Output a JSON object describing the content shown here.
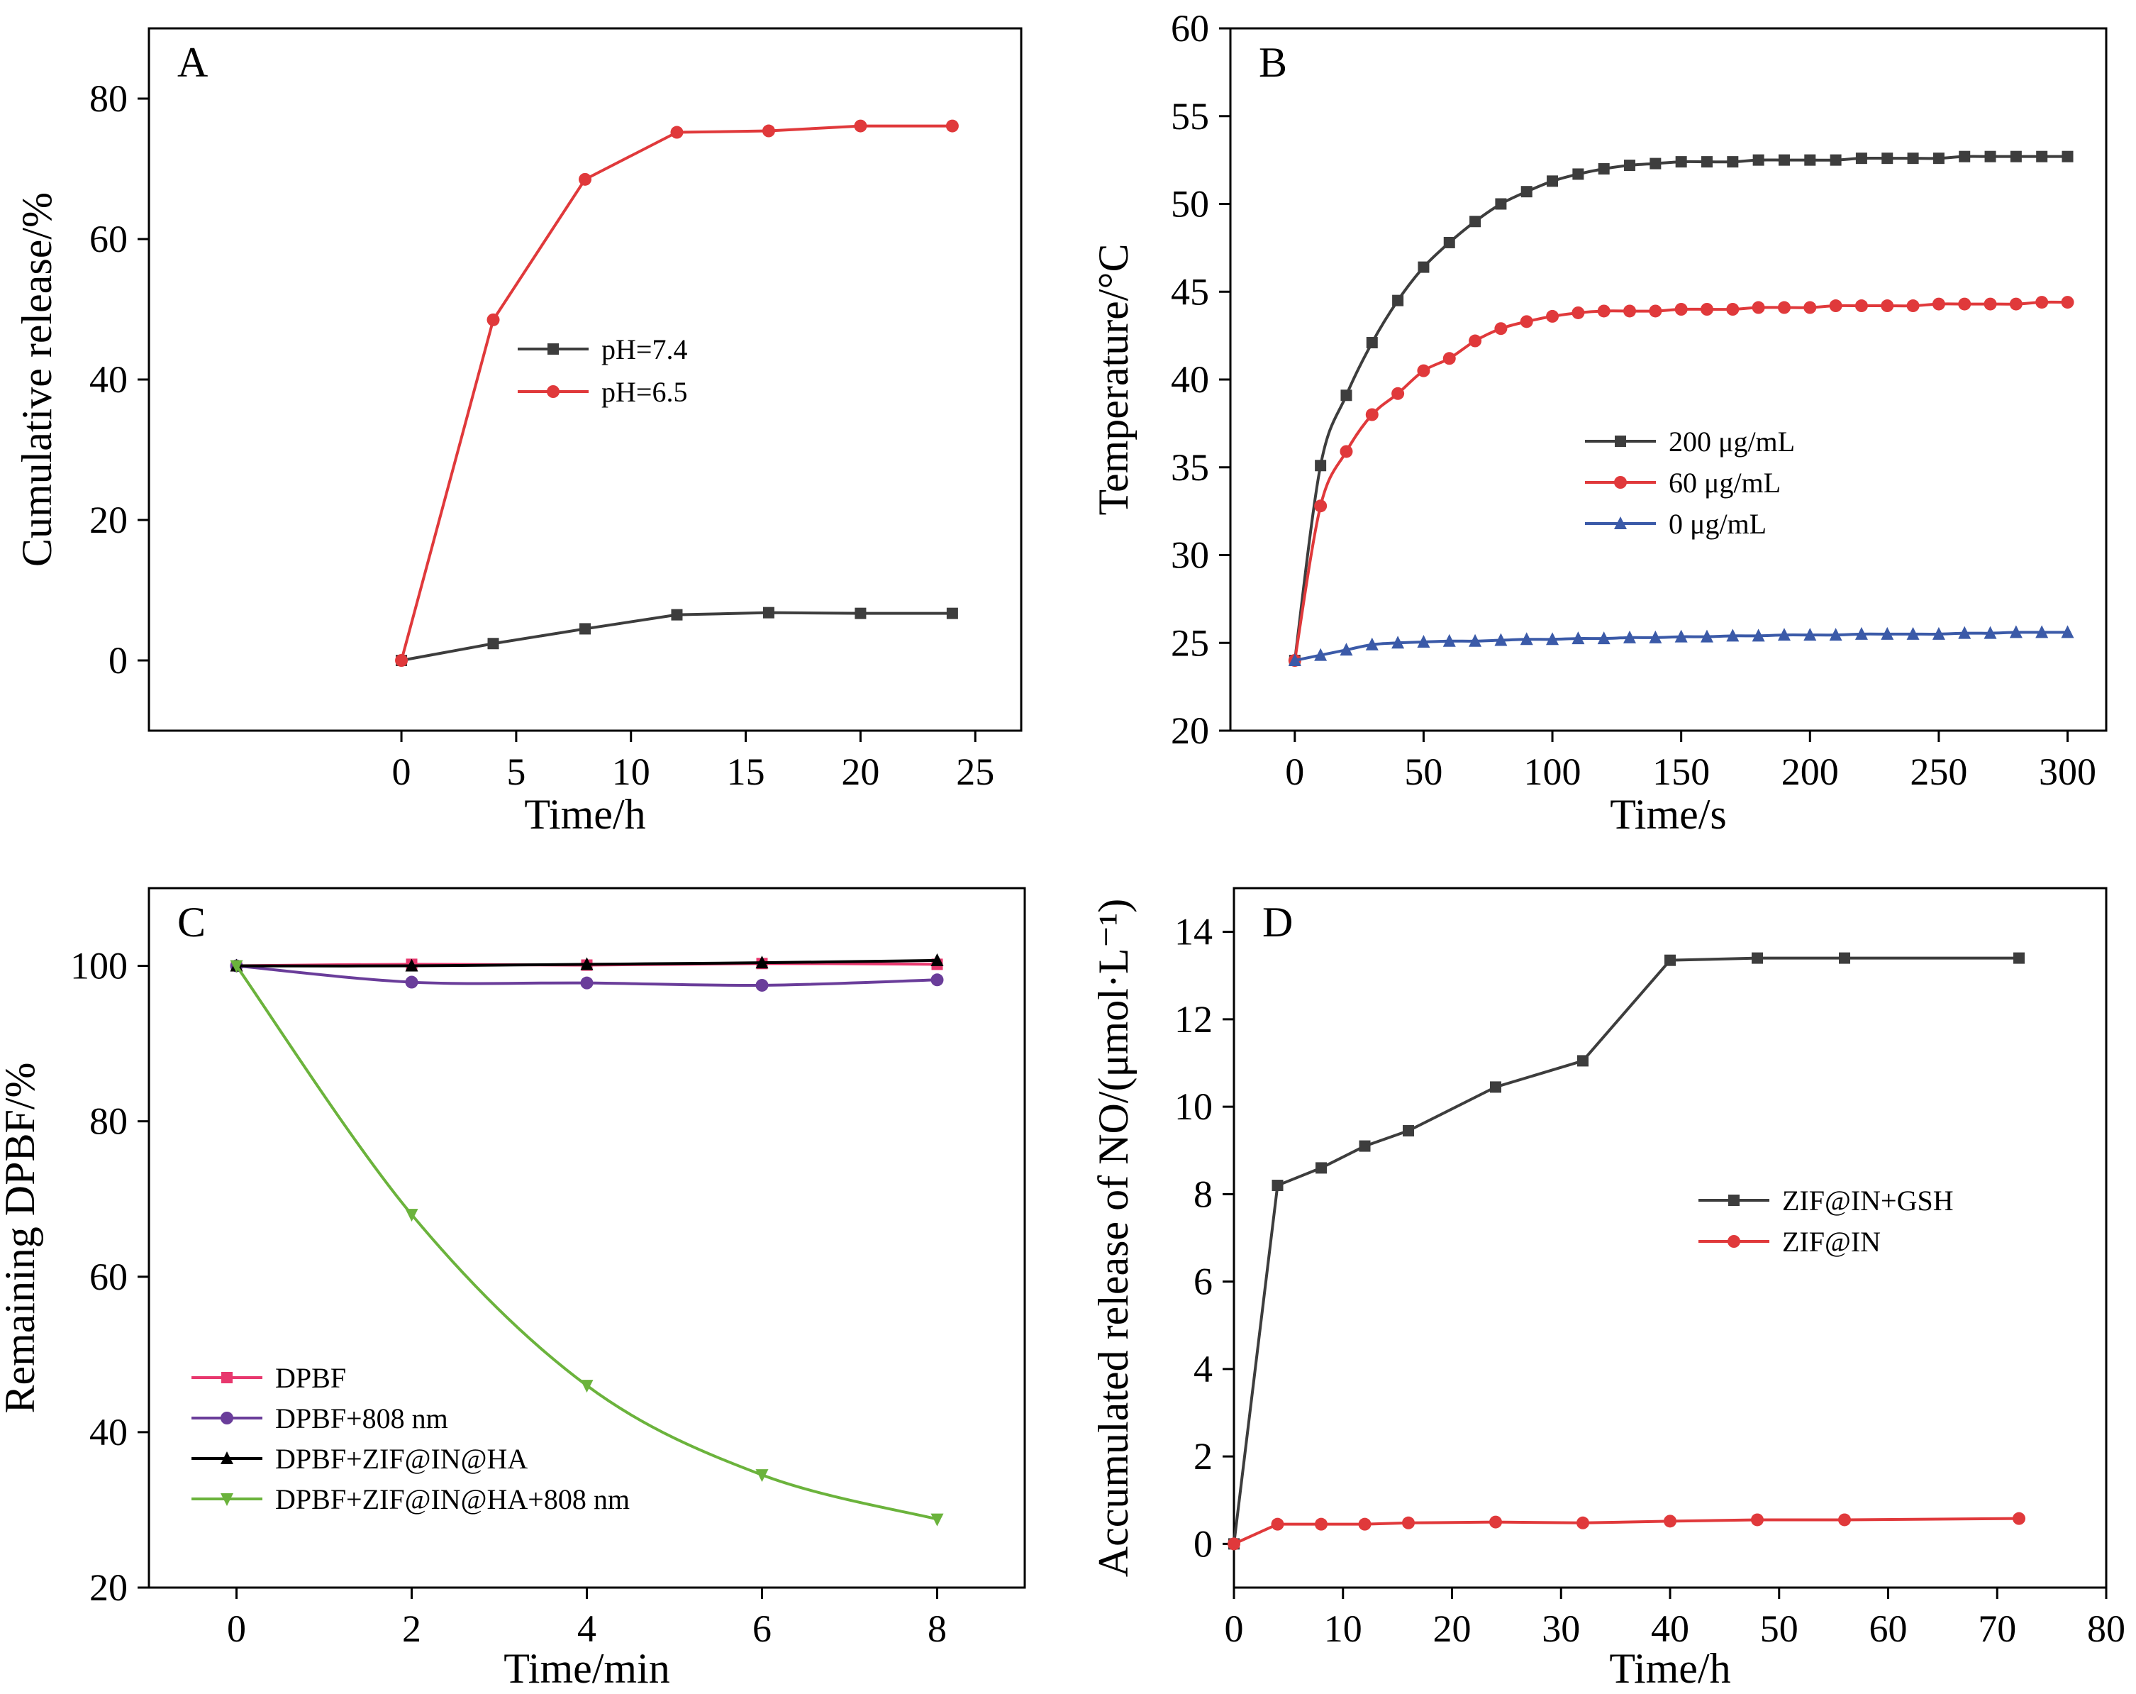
{
  "chart_data": [
    {
      "type": "line",
      "panel": "A",
      "xlabel": "Time/h",
      "ylabel": "Cumulative release/%",
      "xlim": [
        -11,
        27
      ],
      "ylim": [
        -10,
        90
      ],
      "xticks": [
        0,
        5,
        10,
        15,
        20,
        25
      ],
      "yticks": [
        0,
        20,
        40,
        60,
        80
      ],
      "grid": false,
      "legend_position": "center",
      "series": [
        {
          "name": "pH=7.4",
          "color": "#3d3d3d",
          "marker": "square",
          "x": [
            0,
            4,
            8,
            12,
            16,
            20,
            24
          ],
          "y": [
            0,
            2.4,
            4.5,
            6.5,
            6.8,
            6.7,
            6.7
          ]
        },
        {
          "name": "pH=6.5",
          "color": "#e0393b",
          "marker": "circle",
          "x": [
            0,
            4,
            8,
            12,
            16,
            20,
            24
          ],
          "y": [
            0,
            48.5,
            68.5,
            75.2,
            75.4,
            76.1,
            76.1
          ]
        }
      ]
    },
    {
      "type": "line",
      "panel": "B",
      "xlabel": "Time/s",
      "ylabel": "Temperature/°C",
      "xlim": [
        -25,
        315
      ],
      "ylim": [
        20,
        60
      ],
      "xticks": [
        0,
        50,
        100,
        150,
        200,
        250,
        300
      ],
      "yticks": [
        20,
        25,
        30,
        35,
        40,
        45,
        50,
        55,
        60
      ],
      "grid": false,
      "legend_position": "center-right",
      "series": [
        {
          "name": "200 μg/mL",
          "color": "#3d3d3d",
          "marker": "square",
          "x": [
            0,
            10,
            20,
            30,
            40,
            50,
            60,
            70,
            80,
            90,
            100,
            110,
            120,
            130,
            140,
            150,
            160,
            170,
            180,
            190,
            200,
            210,
            220,
            230,
            240,
            250,
            260,
            270,
            280,
            290,
            300
          ],
          "y": [
            24,
            35.1,
            39.1,
            42.1,
            44.5,
            46.4,
            47.8,
            49.0,
            50.0,
            50.7,
            51.3,
            51.7,
            52.0,
            52.2,
            52.3,
            52.4,
            52.4,
            52.4,
            52.5,
            52.5,
            52.5,
            52.5,
            52.6,
            52.6,
            52.6,
            52.6,
            52.7,
            52.7,
            52.7,
            52.7,
            52.7
          ]
        },
        {
          "name": "60 μg/mL",
          "color": "#e0393b",
          "marker": "circle",
          "x": [
            0,
            10,
            20,
            30,
            40,
            50,
            60,
            70,
            80,
            90,
            100,
            110,
            120,
            130,
            140,
            150,
            160,
            170,
            180,
            190,
            200,
            210,
            220,
            230,
            240,
            250,
            260,
            270,
            280,
            290,
            300
          ],
          "y": [
            24,
            32.8,
            35.9,
            38.0,
            39.2,
            40.5,
            41.2,
            42.2,
            42.9,
            43.3,
            43.6,
            43.8,
            43.9,
            43.9,
            43.9,
            44.0,
            44.0,
            44.0,
            44.1,
            44.1,
            44.1,
            44.2,
            44.2,
            44.2,
            44.2,
            44.3,
            44.3,
            44.3,
            44.3,
            44.4,
            44.4
          ]
        },
        {
          "name": "0 μg/mL",
          "color": "#3b5aa8",
          "marker": "triangle-up",
          "x": [
            0,
            10,
            20,
            30,
            40,
            50,
            60,
            70,
            80,
            90,
            100,
            110,
            120,
            130,
            140,
            150,
            160,
            170,
            180,
            190,
            200,
            210,
            220,
            230,
            240,
            250,
            260,
            270,
            280,
            290,
            300
          ],
          "y": [
            24,
            24.3,
            24.6,
            24.9,
            25.0,
            25.05,
            25.1,
            25.1,
            25.15,
            25.2,
            25.2,
            25.25,
            25.25,
            25.3,
            25.3,
            25.35,
            25.35,
            25.4,
            25.4,
            25.45,
            25.45,
            25.45,
            25.5,
            25.5,
            25.5,
            25.5,
            25.55,
            25.55,
            25.6,
            25.6,
            25.6
          ]
        }
      ]
    },
    {
      "type": "line",
      "panel": "C",
      "xlabel": "Time/min",
      "ylabel": "Remaining DPBF/%",
      "xlim": [
        -1,
        9
      ],
      "ylim": [
        20,
        110
      ],
      "xticks": [
        0,
        2,
        4,
        6,
        8
      ],
      "yticks": [
        20,
        40,
        60,
        80,
        100
      ],
      "grid": false,
      "legend_position": "bottom-left",
      "series": [
        {
          "name": "DPBF",
          "color": "#e8386e",
          "marker": "square",
          "x": [
            0,
            2,
            4,
            6,
            8
          ],
          "y": [
            100,
            100.2,
            100.1,
            100.3,
            100.2
          ]
        },
        {
          "name": "DPBF+808 nm",
          "color": "#6a3d9a",
          "marker": "circle",
          "x": [
            0,
            2,
            4,
            6,
            8
          ],
          "y": [
            100,
            97.9,
            97.8,
            97.5,
            98.2
          ]
        },
        {
          "name": "DPBF+ZIF@IN@HA",
          "color": "#000000",
          "marker": "triangle-up",
          "x": [
            0,
            2,
            4,
            6,
            8
          ],
          "y": [
            100,
            100.0,
            100.2,
            100.4,
            100.7
          ]
        },
        {
          "name": "DPBF+ZIF@IN@HA+808 nm",
          "color": "#6bb33c",
          "marker": "triangle-down",
          "x": [
            0,
            2,
            4,
            6,
            8
          ],
          "y": [
            100,
            68,
            46,
            34.5,
            28.8
          ]
        }
      ]
    },
    {
      "type": "line",
      "panel": "D",
      "xlabel": "Time/h",
      "ylabel": "Accumulated release of NO/(μmol·L⁻¹)",
      "xlim": [
        0,
        80
      ],
      "ylim": [
        -1,
        15
      ],
      "xticks": [
        0,
        10,
        20,
        30,
        40,
        50,
        60,
        70,
        80
      ],
      "yticks": [
        0,
        2,
        4,
        6,
        8,
        10,
        12,
        14
      ],
      "grid": false,
      "legend_position": "center-right",
      "series": [
        {
          "name": "ZIF@IN+GSH",
          "color": "#3d3d3d",
          "marker": "square",
          "x": [
            0,
            4,
            8,
            12,
            16,
            24,
            32,
            40,
            48,
            56,
            72
          ],
          "y": [
            0,
            8.2,
            8.6,
            9.1,
            9.45,
            10.45,
            11.05,
            13.35,
            13.4,
            13.4,
            13.4
          ]
        },
        {
          "name": "ZIF@IN",
          "color": "#e0393b",
          "marker": "circle",
          "x": [
            0,
            4,
            8,
            12,
            16,
            24,
            32,
            40,
            48,
            56,
            72
          ],
          "y": [
            0,
            0.45,
            0.45,
            0.45,
            0.48,
            0.5,
            0.48,
            0.52,
            0.55,
            0.55,
            0.58
          ]
        }
      ]
    }
  ]
}
